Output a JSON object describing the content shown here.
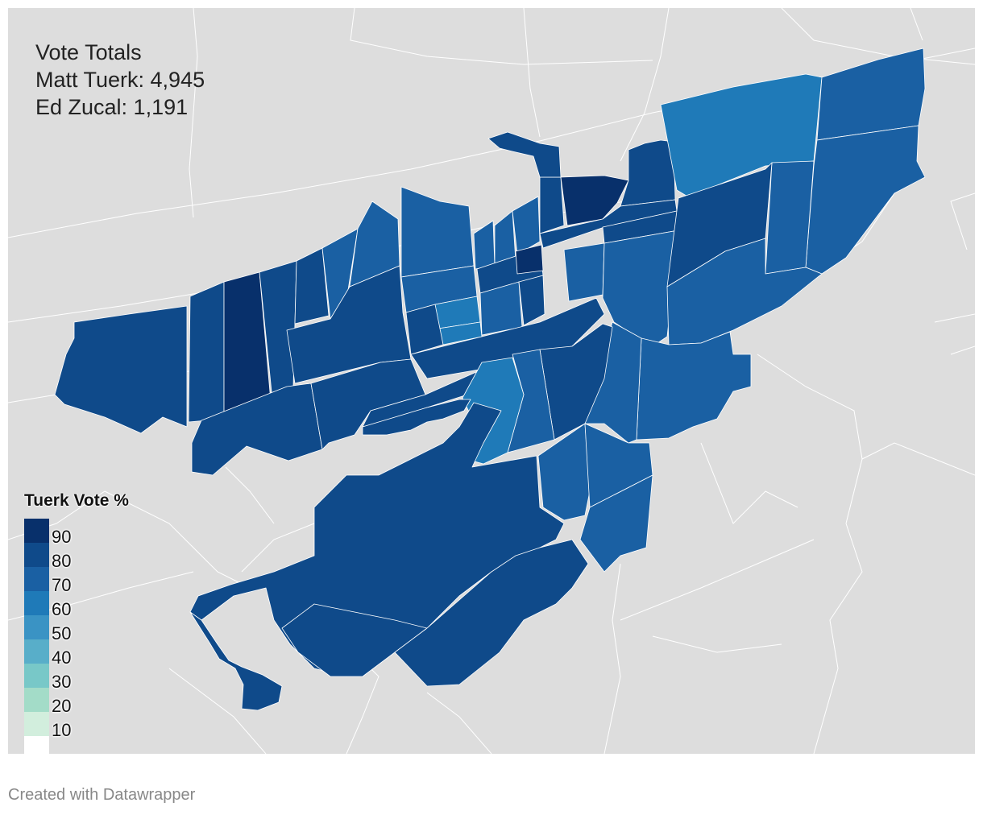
{
  "vote_totals": {
    "heading": "Vote Totals",
    "line_1": "Matt Tuerk: 4,945",
    "line_2": "Ed Zucal: 1,191"
  },
  "legend": {
    "title": "Tuerk Vote %",
    "steps": [
      {
        "label": "90",
        "color": "#08306b"
      },
      {
        "label": "80",
        "color": "#0f4a8a"
      },
      {
        "label": "70",
        "color": "#1a60a3"
      },
      {
        "label": "60",
        "color": "#1f7ab8"
      },
      {
        "label": "50",
        "color": "#3a93c4"
      },
      {
        "label": "40",
        "color": "#58aec9"
      },
      {
        "label": "30",
        "color": "#78c8c8"
      },
      {
        "label": "20",
        "color": "#a3dcc8"
      },
      {
        "label": "10",
        "color": "#d2eedd"
      }
    ]
  },
  "map_colors": {
    "background": "#dddddd",
    "road": "#ffffff"
  },
  "footer": {
    "credit": "Created with Datawrapper"
  }
}
